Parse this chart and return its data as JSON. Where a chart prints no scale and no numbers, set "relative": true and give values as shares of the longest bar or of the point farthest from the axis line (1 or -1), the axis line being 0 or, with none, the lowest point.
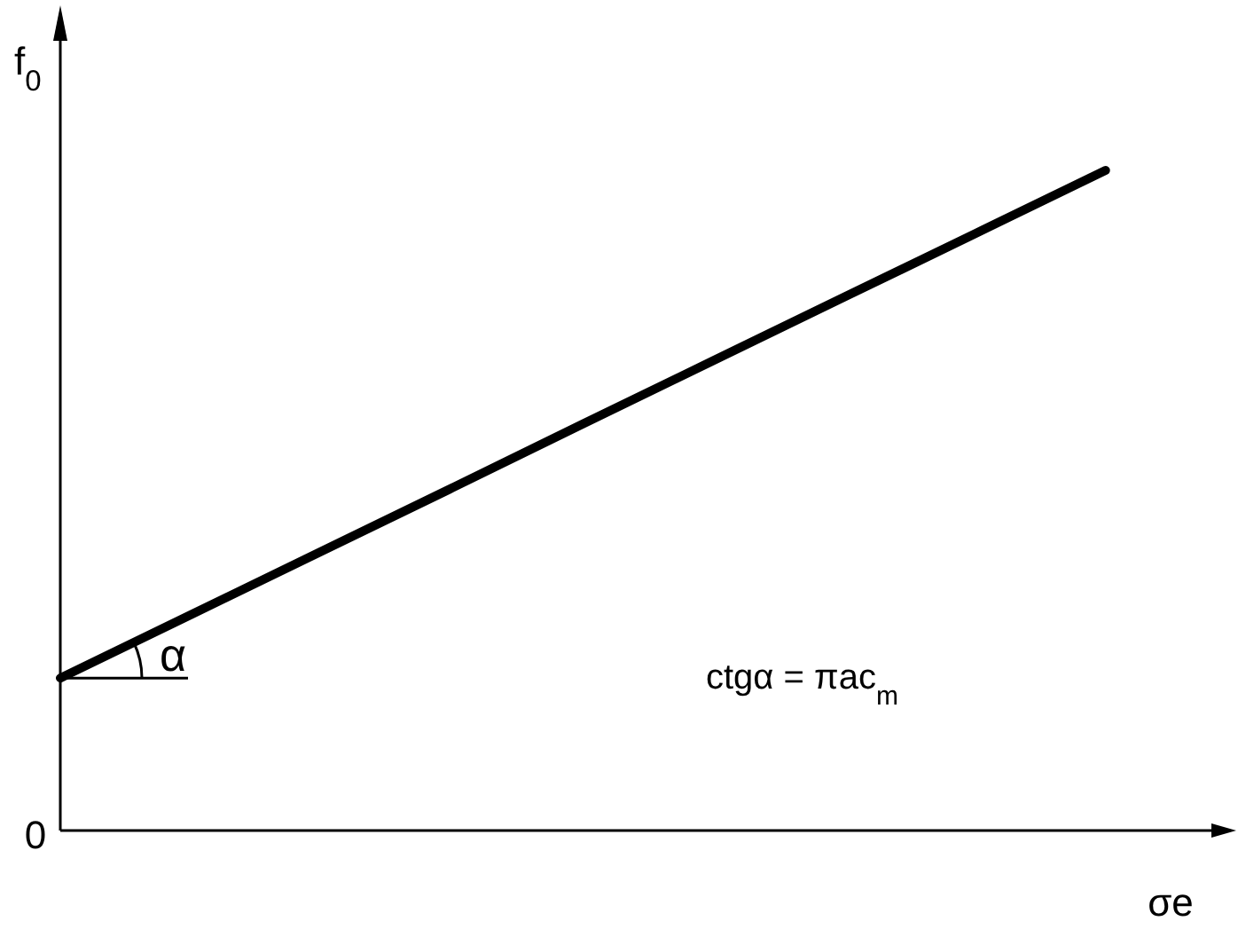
{
  "chart_data": {
    "type": "line",
    "relative": true,
    "xlabel": "σe",
    "ylabel": "f$_{0}$",
    "categories": [
      null,
      null,
      null,
      null,
      null,
      null,
      null,
      null,
      null,
      null
    ],
    "series": [
      {
        "color": "#000000",
        "values": [
          0.231,
          0.327,
          0.423,
          0.519,
          0.616,
          0.712,
          0.808,
          0.904,
          1,
          null
        ]
      }
    ],
    "annotations": [
      "0",
      "α",
      "ctgα = πac$_{m}$"
    ]
  }
}
